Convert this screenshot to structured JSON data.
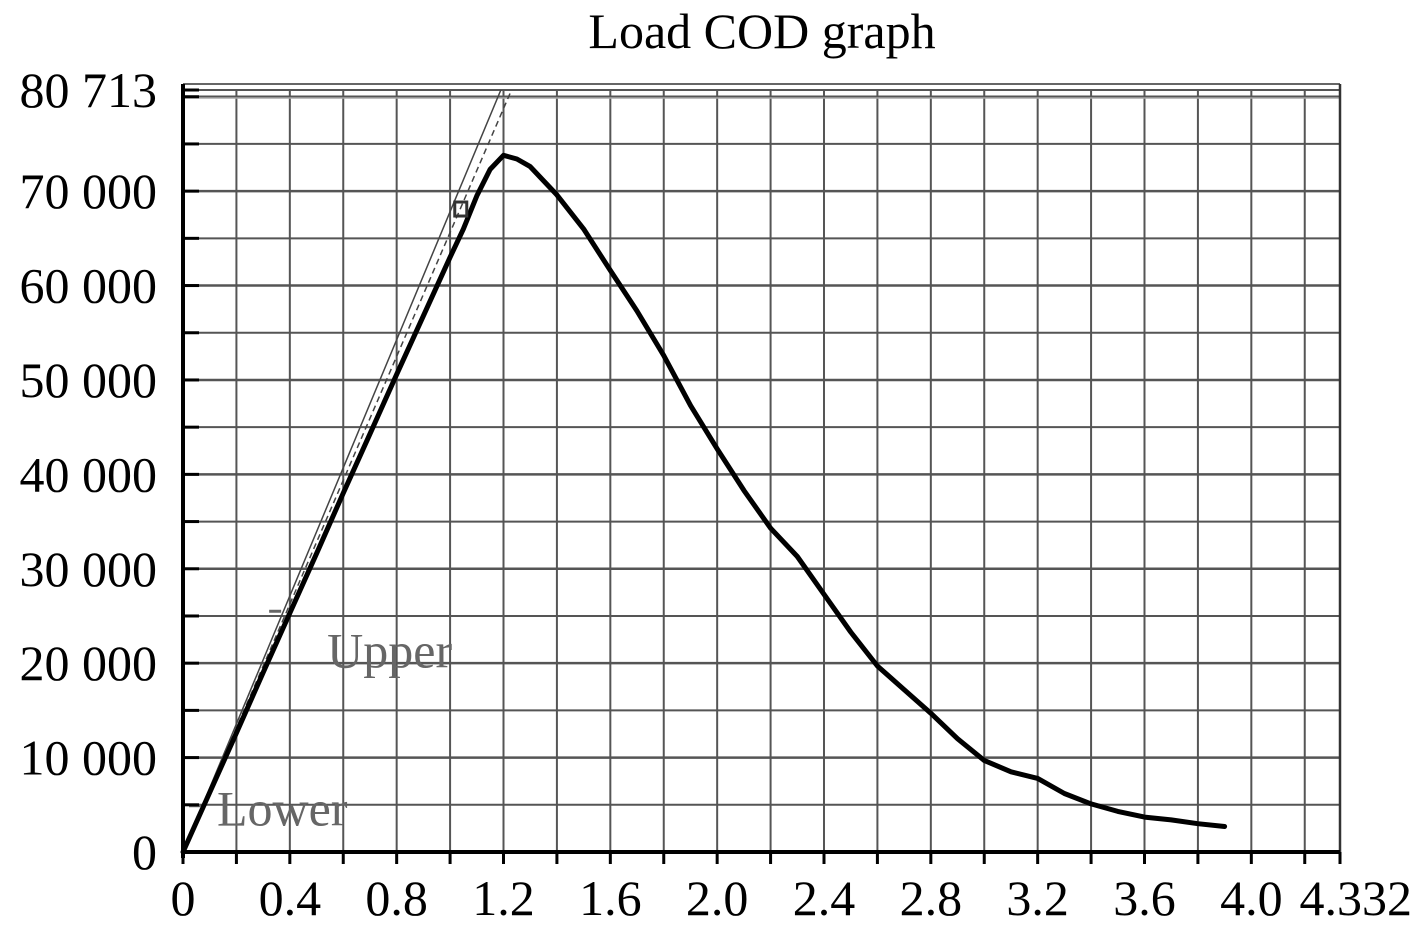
{
  "chart_data": {
    "type": "line",
    "title": "Load COD graph",
    "xlabel": "",
    "ylabel": "",
    "xlim": [
      0,
      4.332
    ],
    "ylim": [
      0,
      80713
    ],
    "x_ticks": [
      0,
      0.4,
      0.8,
      1.2,
      1.6,
      2.0,
      2.4,
      2.8,
      3.2,
      3.6,
      4.0,
      4.332
    ],
    "x_tick_labels": [
      "0",
      "0.4",
      "0.8",
      "1.2",
      "1.6",
      "2.0",
      "2.4",
      "2.8",
      "3.2",
      "3.6",
      "4.0",
      "4.332"
    ],
    "y_ticks": [
      0,
      10000,
      20000,
      30000,
      40000,
      50000,
      60000,
      70000,
      80713
    ],
    "y_tick_labels": [
      "0",
      "10 000",
      "20 000",
      "30 000",
      "40 000",
      "50 000",
      "60 000",
      "70 000",
      "80 713"
    ],
    "grid": true,
    "colors": {
      "curve": "#000000",
      "grid": "#555555",
      "secant": "#444444",
      "annotation": "#666666"
    },
    "series": [
      {
        "values_xy": [
          [
            0,
            0
          ],
          [
            0.1,
            6300
          ],
          [
            0.2,
            12600
          ],
          [
            0.3,
            19000
          ],
          [
            0.4,
            25300
          ],
          [
            0.5,
            31600
          ],
          [
            0.6,
            38000
          ],
          [
            0.7,
            44300
          ],
          [
            0.8,
            50600
          ],
          [
            0.9,
            56800
          ],
          [
            1.0,
            63000
          ],
          [
            1.05,
            66000
          ],
          [
            1.1,
            69500
          ],
          [
            1.15,
            72300
          ],
          [
            1.2,
            73800
          ],
          [
            1.25,
            73400
          ],
          [
            1.3,
            72600
          ],
          [
            1.4,
            69600
          ],
          [
            1.5,
            66000
          ],
          [
            1.6,
            61600
          ],
          [
            1.7,
            57300
          ],
          [
            1.8,
            52600
          ],
          [
            1.9,
            47300
          ],
          [
            2.0,
            42700
          ],
          [
            2.1,
            38300
          ],
          [
            2.2,
            34300
          ],
          [
            2.3,
            31300
          ],
          [
            2.4,
            27300
          ],
          [
            2.5,
            23300
          ],
          [
            2.6,
            19700
          ],
          [
            2.7,
            17200
          ],
          [
            2.8,
            14700
          ],
          [
            2.9,
            12000
          ],
          [
            3.0,
            9700
          ],
          [
            3.1,
            8500
          ],
          [
            3.2,
            7800
          ],
          [
            3.3,
            6200
          ],
          [
            3.4,
            5100
          ],
          [
            3.5,
            4300
          ],
          [
            3.6,
            3700
          ],
          [
            3.7,
            3400
          ],
          [
            3.8,
            3000
          ],
          [
            3.9,
            2700
          ]
        ]
      }
    ],
    "secant_lines": [
      {
        "style": "solid",
        "from": [
          0,
          0
        ],
        "to": [
          1.19,
          80713
        ]
      },
      {
        "style": "dashed",
        "from": [
          0,
          0
        ],
        "to": [
          1.23,
          80713
        ]
      }
    ],
    "annotations": [
      {
        "text": "Upper",
        "x": 0.36,
        "y": 25500
      },
      {
        "text": "Lower",
        "x": 0.06,
        "y": 4900
      }
    ]
  }
}
